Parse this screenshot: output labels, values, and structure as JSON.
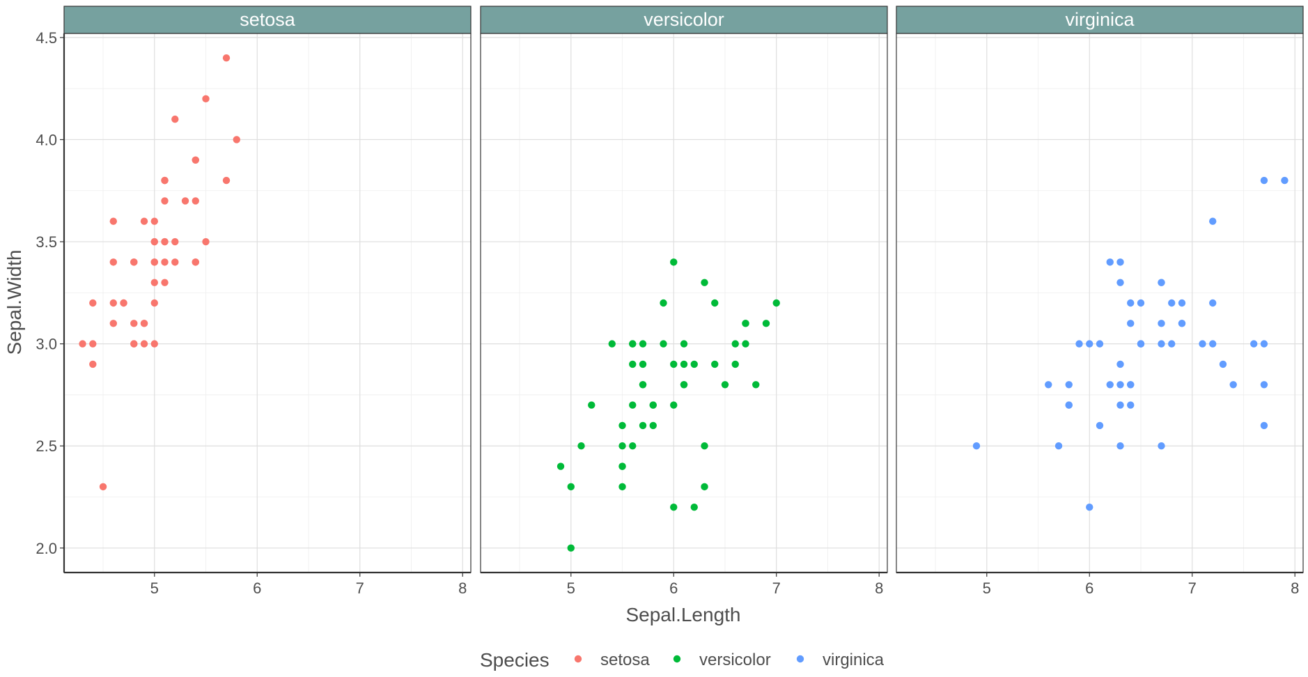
{
  "chart_data": {
    "type": "scatter",
    "facet_by": "Species",
    "xlabel": "Sepal.Length",
    "ylabel": "Sepal.Width",
    "xlim": [
      4.12,
      8.08
    ],
    "ylim": [
      1.88,
      4.52
    ],
    "x_ticks": [
      5,
      6,
      7,
      8
    ],
    "x_tick_labels": [
      "5",
      "6",
      "7",
      "8"
    ],
    "y_ticks": [
      2.0,
      2.5,
      3.0,
      3.5,
      4.0,
      4.5
    ],
    "y_tick_labels": [
      "2.0",
      "2.5",
      "3.0",
      "3.5",
      "4.0",
      "4.5"
    ],
    "grid": true,
    "strip_color": "#76A19F",
    "legend": {
      "title": "Species",
      "position": "bottom",
      "entries": [
        {
          "label": "setosa",
          "color": "#F8766D"
        },
        {
          "label": "versicolor",
          "color": "#00BA38"
        },
        {
          "label": "virginica",
          "color": "#619CFF"
        }
      ]
    },
    "panels": [
      {
        "title": "setosa",
        "color": "#F8766D",
        "points": [
          [
            5.1,
            3.5
          ],
          [
            4.9,
            3.0
          ],
          [
            4.7,
            3.2
          ],
          [
            4.6,
            3.1
          ],
          [
            5.0,
            3.6
          ],
          [
            5.4,
            3.9
          ],
          [
            4.6,
            3.4
          ],
          [
            5.0,
            3.4
          ],
          [
            4.4,
            2.9
          ],
          [
            4.9,
            3.1
          ],
          [
            5.4,
            3.7
          ],
          [
            4.8,
            3.4
          ],
          [
            4.8,
            3.0
          ],
          [
            4.3,
            3.0
          ],
          [
            5.8,
            4.0
          ],
          [
            5.7,
            4.4
          ],
          [
            5.4,
            3.9
          ],
          [
            5.1,
            3.5
          ],
          [
            5.7,
            3.8
          ],
          [
            5.1,
            3.8
          ],
          [
            5.4,
            3.4
          ],
          [
            5.1,
            3.7
          ],
          [
            4.6,
            3.6
          ],
          [
            5.1,
            3.3
          ],
          [
            4.8,
            3.4
          ],
          [
            5.0,
            3.0
          ],
          [
            5.0,
            3.4
          ],
          [
            5.2,
            3.5
          ],
          [
            5.2,
            3.4
          ],
          [
            4.7,
            3.2
          ],
          [
            4.8,
            3.1
          ],
          [
            5.4,
            3.4
          ],
          [
            5.2,
            4.1
          ],
          [
            5.5,
            4.2
          ],
          [
            4.9,
            3.1
          ],
          [
            5.0,
            3.2
          ],
          [
            5.5,
            3.5
          ],
          [
            4.9,
            3.6
          ],
          [
            4.4,
            3.0
          ],
          [
            5.1,
            3.4
          ],
          [
            5.0,
            3.5
          ],
          [
            4.5,
            2.3
          ],
          [
            4.4,
            3.2
          ],
          [
            5.0,
            3.5
          ],
          [
            5.1,
            3.8
          ],
          [
            4.8,
            3.0
          ],
          [
            5.1,
            3.8
          ],
          [
            4.6,
            3.2
          ],
          [
            5.3,
            3.7
          ],
          [
            5.0,
            3.3
          ]
        ]
      },
      {
        "title": "versicolor",
        "color": "#00BA38",
        "points": [
          [
            7.0,
            3.2
          ],
          [
            6.4,
            3.2
          ],
          [
            6.9,
            3.1
          ],
          [
            5.5,
            2.3
          ],
          [
            6.5,
            2.8
          ],
          [
            5.7,
            2.8
          ],
          [
            6.3,
            3.3
          ],
          [
            4.9,
            2.4
          ],
          [
            6.6,
            2.9
          ],
          [
            5.2,
            2.7
          ],
          [
            5.0,
            2.0
          ],
          [
            5.9,
            3.0
          ],
          [
            6.0,
            2.2
          ],
          [
            6.1,
            2.9
          ],
          [
            5.6,
            2.9
          ],
          [
            6.7,
            3.1
          ],
          [
            5.6,
            3.0
          ],
          [
            5.8,
            2.7
          ],
          [
            6.2,
            2.2
          ],
          [
            5.6,
            2.5
          ],
          [
            5.9,
            3.2
          ],
          [
            6.1,
            2.8
          ],
          [
            6.3,
            2.5
          ],
          [
            6.1,
            2.8
          ],
          [
            6.4,
            2.9
          ],
          [
            6.6,
            3.0
          ],
          [
            6.8,
            2.8
          ],
          [
            6.7,
            3.0
          ],
          [
            6.0,
            2.9
          ],
          [
            5.7,
            2.6
          ],
          [
            5.5,
            2.4
          ],
          [
            5.5,
            2.4
          ],
          [
            5.8,
            2.7
          ],
          [
            6.0,
            2.7
          ],
          [
            5.4,
            3.0
          ],
          [
            6.0,
            3.4
          ],
          [
            6.7,
            3.1
          ],
          [
            6.3,
            2.3
          ],
          [
            5.6,
            3.0
          ],
          [
            5.5,
            2.5
          ],
          [
            5.5,
            2.6
          ],
          [
            6.1,
            3.0
          ],
          [
            5.8,
            2.6
          ],
          [
            5.0,
            2.3
          ],
          [
            5.6,
            2.7
          ],
          [
            5.7,
            3.0
          ],
          [
            5.7,
            2.9
          ],
          [
            6.2,
            2.9
          ],
          [
            5.1,
            2.5
          ],
          [
            5.7,
            2.8
          ]
        ]
      },
      {
        "title": "virginica",
        "color": "#619CFF",
        "points": [
          [
            6.3,
            3.3
          ],
          [
            5.8,
            2.7
          ],
          [
            7.1,
            3.0
          ],
          [
            6.3,
            2.9
          ],
          [
            6.5,
            3.0
          ],
          [
            7.6,
            3.0
          ],
          [
            4.9,
            2.5
          ],
          [
            7.3,
            2.9
          ],
          [
            6.7,
            2.5
          ],
          [
            7.2,
            3.6
          ],
          [
            6.5,
            3.2
          ],
          [
            6.4,
            2.7
          ],
          [
            6.8,
            3.0
          ],
          [
            5.7,
            2.5
          ],
          [
            5.8,
            2.8
          ],
          [
            6.4,
            3.2
          ],
          [
            6.5,
            3.0
          ],
          [
            7.7,
            3.8
          ],
          [
            7.7,
            2.6
          ],
          [
            6.0,
            2.2
          ],
          [
            6.9,
            3.2
          ],
          [
            5.6,
            2.8
          ],
          [
            7.7,
            2.8
          ],
          [
            6.3,
            2.7
          ],
          [
            6.7,
            3.3
          ],
          [
            7.2,
            3.2
          ],
          [
            6.2,
            2.8
          ],
          [
            6.1,
            3.0
          ],
          [
            6.4,
            2.8
          ],
          [
            7.2,
            3.0
          ],
          [
            7.4,
            2.8
          ],
          [
            7.9,
            3.8
          ],
          [
            6.4,
            2.8
          ],
          [
            6.3,
            2.8
          ],
          [
            6.1,
            2.6
          ],
          [
            7.7,
            3.0
          ],
          [
            6.3,
            3.4
          ],
          [
            6.4,
            3.1
          ],
          [
            6.0,
            3.0
          ],
          [
            6.9,
            3.1
          ],
          [
            6.7,
            3.1
          ],
          [
            6.9,
            3.1
          ],
          [
            5.8,
            2.7
          ],
          [
            6.8,
            3.2
          ],
          [
            6.7,
            3.3
          ],
          [
            6.7,
            3.0
          ],
          [
            6.3,
            2.5
          ],
          [
            6.5,
            3.0
          ],
          [
            6.2,
            3.4
          ],
          [
            5.9,
            3.0
          ]
        ]
      }
    ]
  }
}
